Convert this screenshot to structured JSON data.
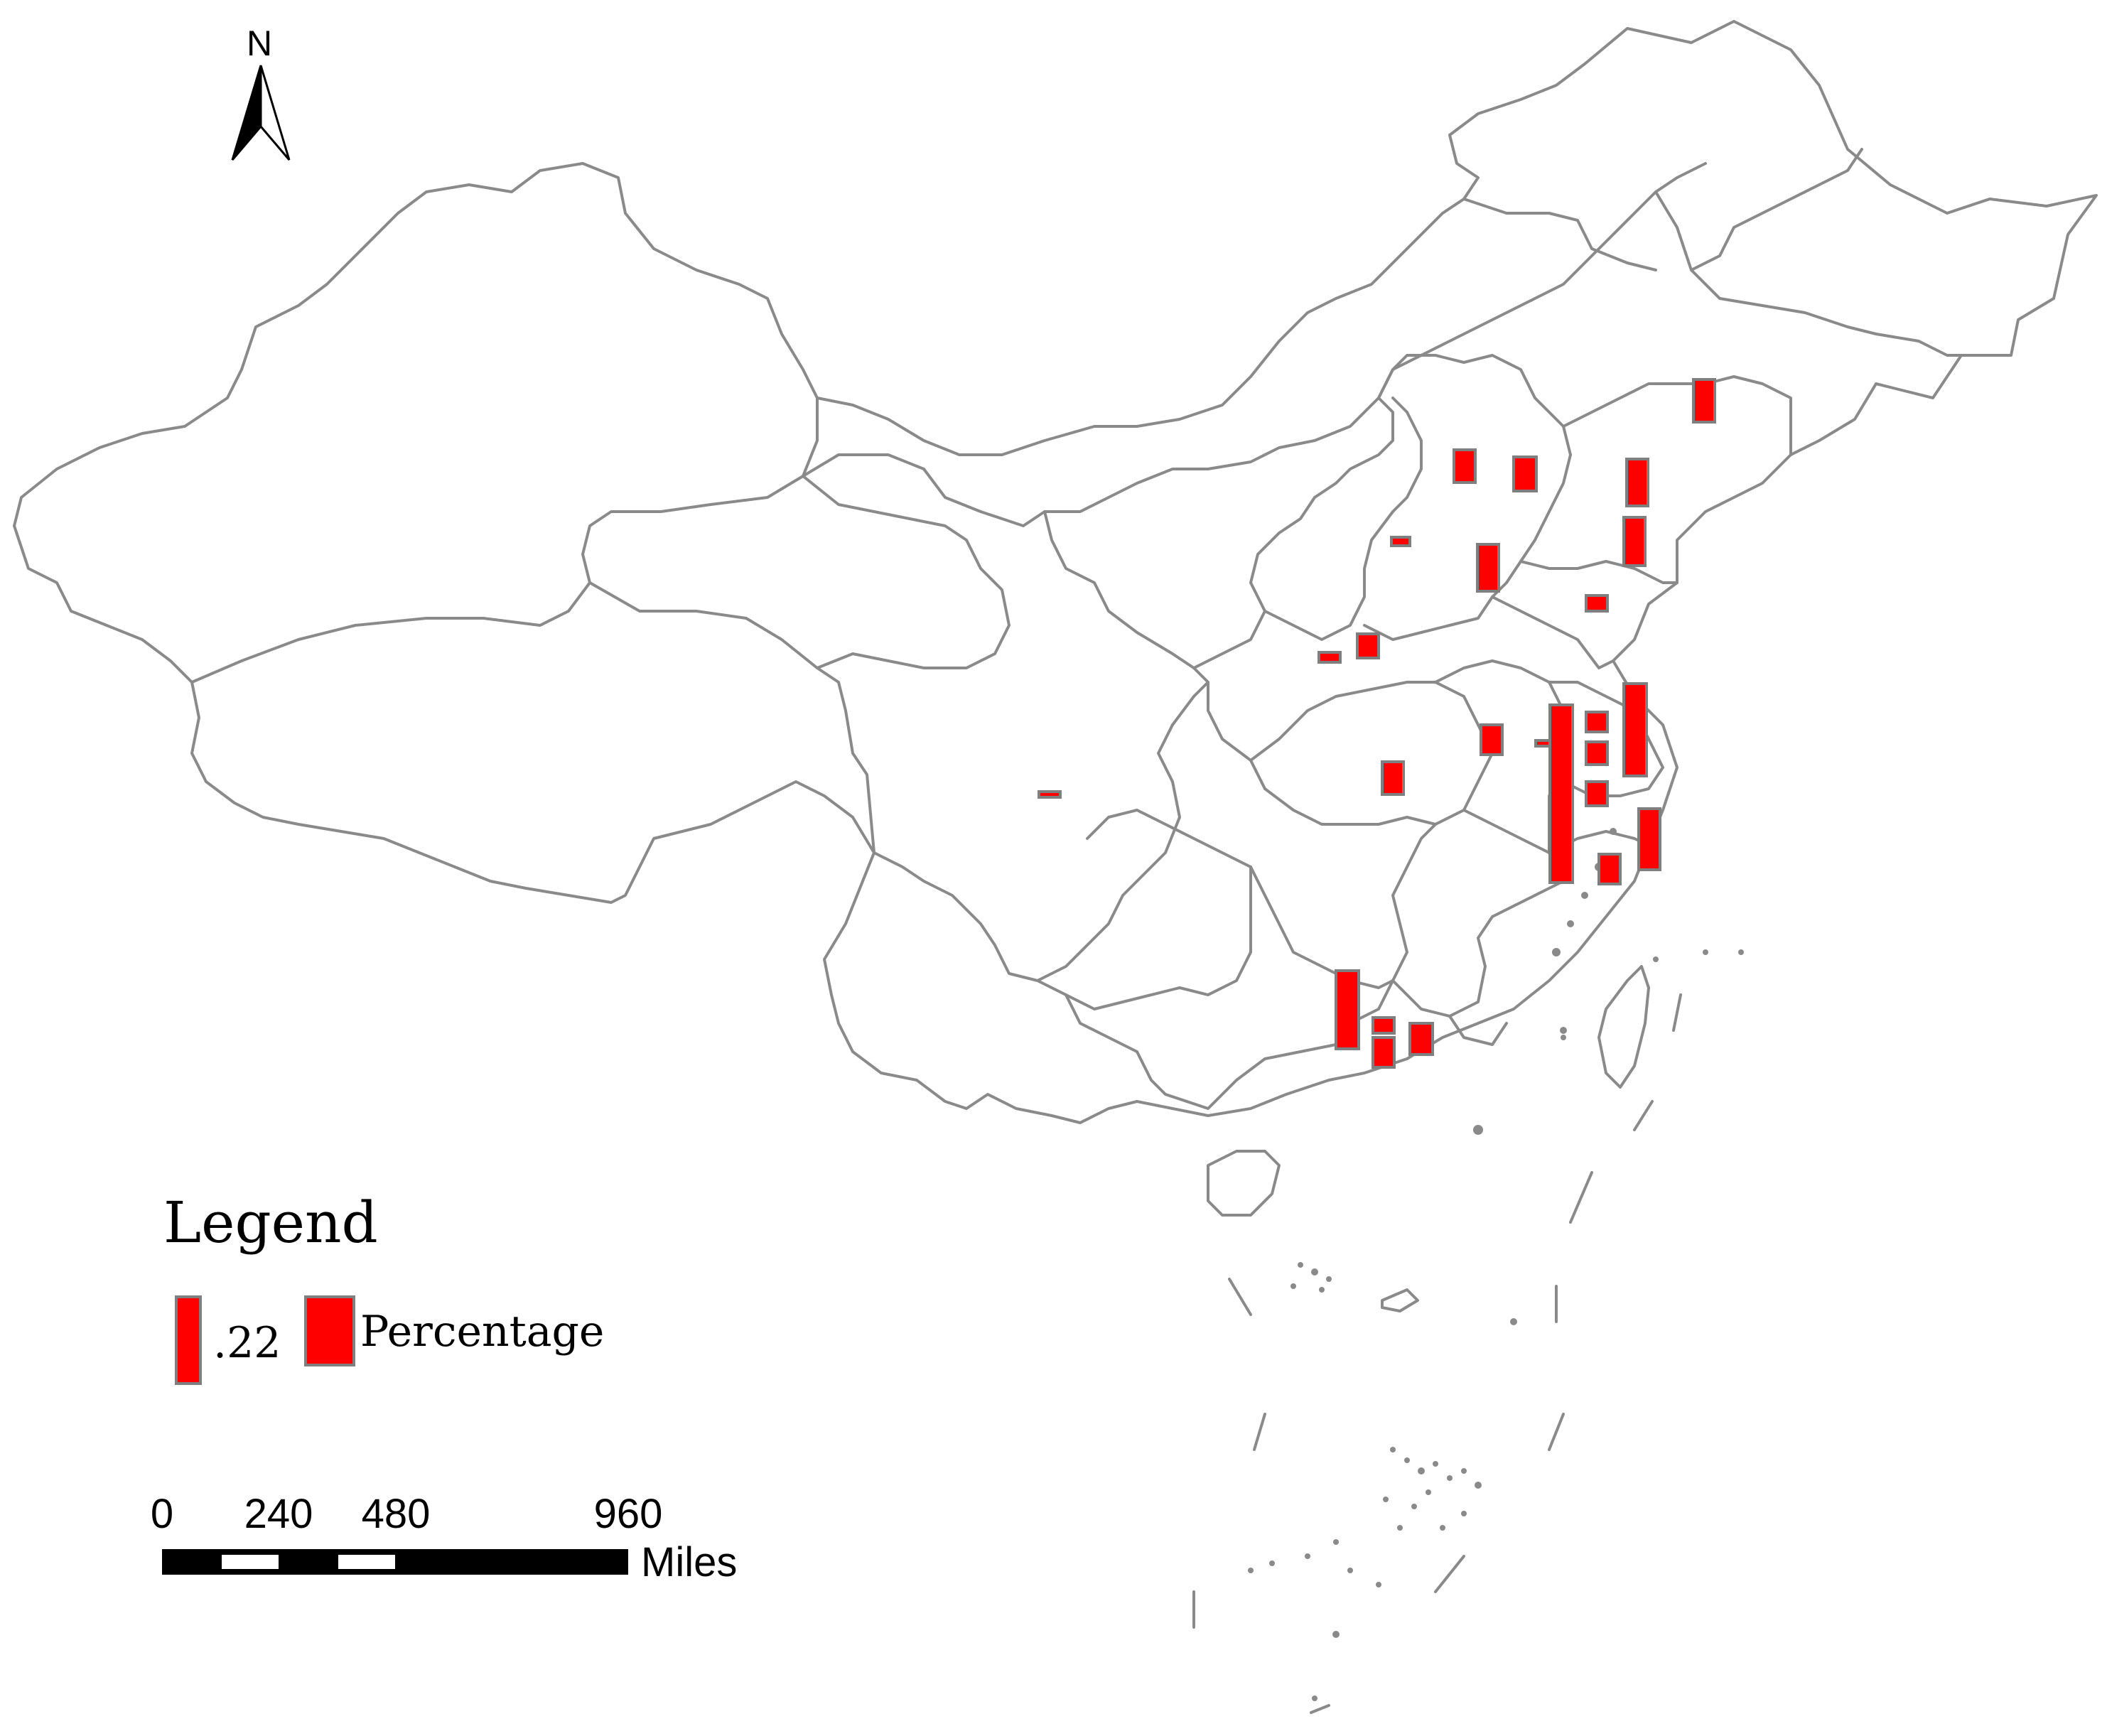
{
  "north_arrow": {
    "label": "N",
    "icon": "north-arrow-icon"
  },
  "legend": {
    "title": "Legend",
    "items": [
      {
        "label": ".22"
      },
      {
        "label": "Percentage"
      }
    ]
  },
  "scale_bar": {
    "ticks": [
      "0",
      "240",
      "480",
      "960"
    ],
    "unit": "Miles"
  },
  "colors": {
    "bar_fill": "#ff0000",
    "bar_stroke": "#7f7f7f",
    "boundary": "#8a8a8a"
  }
}
